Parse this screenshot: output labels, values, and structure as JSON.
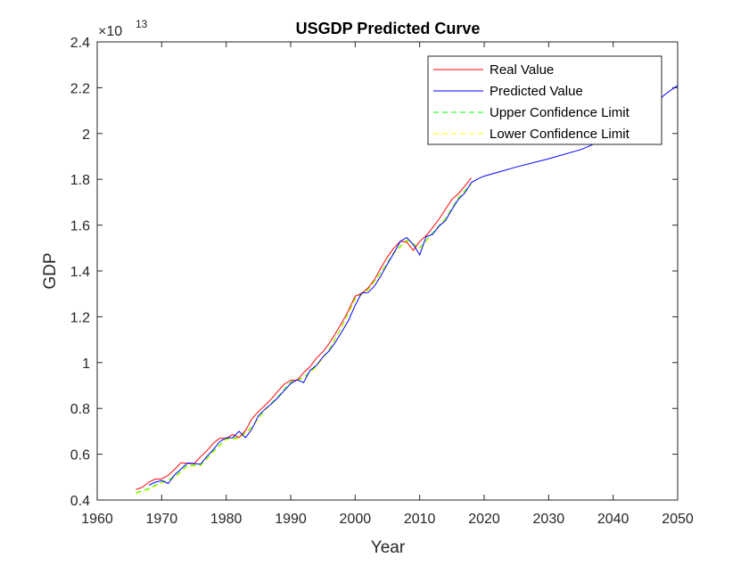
{
  "chart_data": {
    "type": "line",
    "title": "USGDP Predicted Curve",
    "xlabel": "Year",
    "ylabel": "GDP",
    "y_exponent_label": "×10",
    "y_exponent_power": "13",
    "xlim": [
      1960,
      2050
    ],
    "ylim": [
      0.4,
      2.4
    ],
    "xticks": [
      1960,
      1970,
      1980,
      1990,
      2000,
      2010,
      2020,
      2030,
      2040,
      2050
    ],
    "yticks": [
      0.4,
      0.6,
      0.8,
      1,
      1.2,
      1.4,
      1.6,
      1.8,
      2,
      2.2,
      2.4
    ],
    "legend_position": "top-right",
    "grid": false,
    "series": [
      {
        "name": "Real Value",
        "color": "#ff0000",
        "style": "solid",
        "x": [
          1966,
          1967,
          1968,
          1969,
          1970,
          1971,
          1972,
          1973,
          1974,
          1975,
          1976,
          1977,
          1978,
          1979,
          1980,
          1981,
          1982,
          1983,
          1984,
          1985,
          1986,
          1987,
          1988,
          1989,
          1990,
          1991,
          1992,
          1993,
          1994,
          1995,
          1996,
          1997,
          1998,
          1999,
          2000,
          2001,
          2002,
          2003,
          2004,
          2005,
          2006,
          2007,
          2008,
          2009,
          2010,
          2011,
          2012,
          2013,
          2014,
          2015,
          2016,
          2017,
          2018
        ],
        "y": [
          0.445,
          0.456,
          0.478,
          0.492,
          0.492,
          0.508,
          0.534,
          0.563,
          0.56,
          0.558,
          0.588,
          0.615,
          0.648,
          0.67,
          0.669,
          0.686,
          0.673,
          0.704,
          0.755,
          0.786,
          0.813,
          0.841,
          0.875,
          0.906,
          0.923,
          0.923,
          0.956,
          0.982,
          1.02,
          1.047,
          1.085,
          1.13,
          1.177,
          1.23,
          1.29,
          1.302,
          1.326,
          1.363,
          1.414,
          1.461,
          1.5,
          1.53,
          1.526,
          1.49,
          1.529,
          1.554,
          1.589,
          1.626,
          1.67,
          1.712,
          1.738,
          1.77,
          1.806
        ]
      },
      {
        "name": "Predicted Value",
        "color": "#0000ff",
        "style": "solid",
        "x": [
          1968,
          1969,
          1970,
          1971,
          1972,
          1973,
          1974,
          1975,
          1976,
          1977,
          1978,
          1979,
          1980,
          1981,
          1982,
          1983,
          1984,
          1985,
          1986,
          1987,
          1988,
          1989,
          1990,
          1991,
          1992,
          1993,
          1994,
          1995,
          1996,
          1997,
          1998,
          1999,
          2000,
          2001,
          2002,
          2003,
          2004,
          2005,
          2006,
          2007,
          2008,
          2009,
          2010,
          2011,
          2012,
          2013,
          2014,
          2015,
          2016,
          2017,
          2018,
          2019,
          2020,
          2022,
          2025,
          2030,
          2035,
          2040,
          2045,
          2048,
          2050
        ],
        "y": [
          0.465,
          0.478,
          0.485,
          0.472,
          0.51,
          0.535,
          0.562,
          0.56,
          0.556,
          0.59,
          0.62,
          0.655,
          0.672,
          0.672,
          0.7,
          0.672,
          0.71,
          0.768,
          0.796,
          0.82,
          0.846,
          0.878,
          0.908,
          0.925,
          0.913,
          0.966,
          0.988,
          1.025,
          1.052,
          1.092,
          1.138,
          1.186,
          1.25,
          1.304,
          1.306,
          1.334,
          1.38,
          1.43,
          1.478,
          1.53,
          1.546,
          1.516,
          1.47,
          1.55,
          1.56,
          1.596,
          1.62,
          1.668,
          1.713,
          1.74,
          1.786,
          1.802,
          1.814,
          1.83,
          1.854,
          1.89,
          1.93,
          1.99,
          2.09,
          2.17,
          2.21
        ]
      },
      {
        "name": "Upper Confidence Limit",
        "color": "#00ff00",
        "style": "dashed",
        "x": [
          1966,
          1968,
          1970,
          1972,
          1974,
          1976,
          1978,
          1980,
          1982,
          1984,
          1986,
          1988,
          1990,
          1992,
          1994,
          1996,
          1998,
          2000,
          2002,
          2004,
          2006,
          2008,
          2010,
          2012,
          2014,
          2016,
          2018
        ],
        "y": [
          0.432,
          0.45,
          0.478,
          0.5,
          0.552,
          0.552,
          0.612,
          0.668,
          0.672,
          0.72,
          0.795,
          0.85,
          0.915,
          0.935,
          0.985,
          1.06,
          1.16,
          1.28,
          1.32,
          1.395,
          1.48,
          1.535,
          1.5,
          1.565,
          1.63,
          1.72,
          1.78
        ]
      },
      {
        "name": "Lower Confidence Limit",
        "color": "#ffff00",
        "style": "dashed",
        "x": [
          1966,
          1968,
          1970,
          1972,
          1974,
          1976,
          1978,
          1980,
          1982,
          1984,
          1986,
          1988,
          1990,
          1992,
          1994,
          1996,
          1998,
          2000,
          2002,
          2004,
          2006,
          2008,
          2010,
          2012,
          2014,
          2016,
          2018
        ],
        "y": [
          0.428,
          0.446,
          0.474,
          0.496,
          0.548,
          0.548,
          0.608,
          0.664,
          0.668,
          0.716,
          0.791,
          0.846,
          0.911,
          0.931,
          0.981,
          1.056,
          1.156,
          1.276,
          1.316,
          1.391,
          1.476,
          1.531,
          1.496,
          1.561,
          1.626,
          1.716,
          1.776
        ]
      }
    ]
  }
}
